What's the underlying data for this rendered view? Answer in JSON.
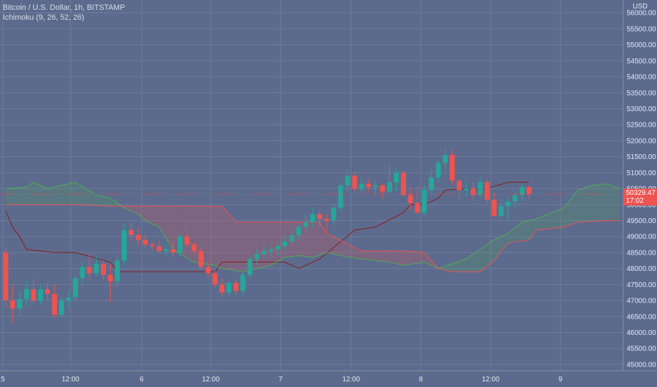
{
  "legend": {
    "title": "Bitcoin / U.S. Dollar, 1h, BITSTAMP",
    "indicator": "Ichimoku (9, 26, 52, 26)"
  },
  "last_price": {
    "value": "50329.47",
    "countdown": "17:02"
  },
  "colors": {
    "background": "#5c6b8d",
    "grid": "#6e7c9c",
    "up": "#26a69a",
    "down": "#ef5350",
    "base_line": "#8b1a1a",
    "span_a": "#4caf50",
    "span_b": "#ef5350",
    "cloud_bull": "rgba(76,175,80,0.18)",
    "cloud_bear": "rgba(239,83,80,0.22)",
    "axis_text": "#e6e9f0"
  },
  "chart_data": {
    "type": "candlestick",
    "title": "Bitcoin / U.S. Dollar, 1h, BITSTAMP",
    "ylabel": "USD",
    "ylim": [
      44800,
      56400
    ],
    "y_ticks": [
      45000,
      45500,
      46000,
      46500,
      47000,
      47500,
      48000,
      48500,
      49000,
      49500,
      50000,
      50500,
      51000,
      51500,
      52000,
      52500,
      53000,
      53500,
      54000,
      54500,
      55000,
      55500,
      56000
    ],
    "x_ticks": [
      "5",
      "12:00",
      "6",
      "12:00",
      "7",
      "12:00",
      "8",
      "12:00",
      "9"
    ],
    "grid": true,
    "candle_width_hours": 1,
    "candles": [
      [
        48500,
        48650,
        46800,
        47000
      ],
      [
        47000,
        47450,
        46300,
        46750
      ],
      [
        46750,
        47300,
        46500,
        47050
      ],
      [
        47050,
        47600,
        46800,
        47350
      ],
      [
        47350,
        47700,
        46900,
        47000
      ],
      [
        47000,
        47500,
        46850,
        47350
      ],
      [
        47350,
        47550,
        47000,
        47200
      ],
      [
        47200,
        47500,
        46450,
        46550
      ],
      [
        46550,
        47150,
        46500,
        47000
      ],
      [
        47000,
        47300,
        46800,
        47100
      ],
      [
        47100,
        47800,
        47000,
        47700
      ],
      [
        47700,
        48200,
        47500,
        48050
      ],
      [
        48050,
        48500,
        47650,
        47850
      ],
      [
        47850,
        48400,
        47750,
        48150
      ],
      [
        48150,
        48250,
        47650,
        47800
      ],
      [
        47800,
        48150,
        46950,
        47600
      ],
      [
        47600,
        48400,
        47450,
        48250
      ],
      [
        48250,
        49400,
        48100,
        49200
      ],
      [
        49200,
        49450,
        48850,
        49050
      ],
      [
        49050,
        49300,
        48700,
        48900
      ],
      [
        48900,
        49050,
        48650,
        48750
      ],
      [
        48750,
        48850,
        48550,
        48700
      ],
      [
        48700,
        48900,
        48500,
        48550
      ],
      [
        48550,
        48750,
        48400,
        48600
      ],
      [
        48600,
        48850,
        48350,
        48500
      ],
      [
        48500,
        49100,
        48400,
        49000
      ],
      [
        49000,
        49200,
        48650,
        48750
      ],
      [
        48750,
        48850,
        48450,
        48550
      ],
      [
        48550,
        48650,
        47950,
        48050
      ],
      [
        48050,
        48200,
        47700,
        47850
      ],
      [
        47850,
        47950,
        47400,
        47500
      ],
      [
        47500,
        47700,
        47100,
        47250
      ],
      [
        47250,
        47600,
        47150,
        47550
      ],
      [
        47550,
        47650,
        47200,
        47300
      ],
      [
        47300,
        47900,
        47150,
        47800
      ],
      [
        47800,
        48400,
        47700,
        48300
      ],
      [
        48300,
        48600,
        48100,
        48450
      ],
      [
        48450,
        48750,
        48300,
        48550
      ],
      [
        48550,
        48700,
        48350,
        48600
      ],
      [
        48600,
        48850,
        48400,
        48700
      ],
      [
        48700,
        49050,
        48550,
        48850
      ],
      [
        48850,
        49200,
        48750,
        49050
      ],
      [
        49050,
        49400,
        48900,
        49300
      ],
      [
        49300,
        49700,
        49100,
        49450
      ],
      [
        49450,
        49900,
        49250,
        49700
      ],
      [
        49700,
        49800,
        49300,
        49550
      ],
      [
        49550,
        49700,
        49100,
        49500
      ],
      [
        49500,
        50000,
        49350,
        49900
      ],
      [
        49900,
        50700,
        49800,
        50600
      ],
      [
        50600,
        51100,
        50400,
        50900
      ],
      [
        50900,
        51000,
        50400,
        50500
      ],
      [
        50500,
        50800,
        50350,
        50650
      ],
      [
        50650,
        50800,
        50400,
        50550
      ],
      [
        50550,
        50700,
        50250,
        50600
      ],
      [
        50600,
        50650,
        50200,
        50400
      ],
      [
        50400,
        51250,
        50300,
        50700
      ],
      [
        50700,
        51150,
        50400,
        51000
      ],
      [
        51000,
        51050,
        50250,
        50300
      ],
      [
        50300,
        50550,
        49850,
        50050
      ],
      [
        50050,
        50550,
        49700,
        49750
      ],
      [
        49750,
        50600,
        49650,
        50450
      ],
      [
        50450,
        51100,
        50300,
        50850
      ],
      [
        50850,
        51400,
        50700,
        51300
      ],
      [
        51300,
        51750,
        51050,
        51550
      ],
      [
        51550,
        51700,
        50600,
        50750
      ],
      [
        50750,
        50800,
        50150,
        50450
      ],
      [
        50450,
        50700,
        50250,
        50500
      ],
      [
        50500,
        50700,
        50100,
        50300
      ],
      [
        50300,
        50850,
        50200,
        50700
      ],
      [
        50700,
        50800,
        50050,
        50150
      ],
      [
        50150,
        50350,
        49600,
        49650
      ],
      [
        49650,
        50200,
        49550,
        49950
      ],
      [
        49950,
        50250,
        49450,
        50100
      ],
      [
        50100,
        50400,
        49900,
        50300
      ],
      [
        50300,
        50650,
        50100,
        50550
      ],
      [
        50550,
        50600,
        50200,
        50329.47
      ]
    ],
    "series": [
      {
        "name": "base line",
        "x": [
          0,
          1,
          2,
          3,
          5,
          7,
          10,
          15,
          16,
          18,
          30,
          31,
          40,
          42,
          45,
          50,
          53,
          57,
          58,
          60,
          62,
          63,
          66,
          68,
          72,
          75
        ],
        "y": [
          49800,
          49300,
          49000,
          48600,
          48550,
          48500,
          48500,
          48200,
          47900,
          47900,
          47900,
          48200,
          48200,
          48000,
          48300,
          49200,
          49300,
          49750,
          50000,
          50000,
          50200,
          50450,
          50500,
          50450,
          50700,
          50700
        ]
      },
      {
        "name": "span a",
        "x": [
          0,
          3,
          4,
          6,
          8,
          10,
          13,
          15,
          17,
          19,
          20,
          22,
          24,
          27,
          30,
          31,
          34,
          36,
          38,
          40,
          42,
          44,
          46,
          48,
          51,
          55,
          57,
          60,
          62,
          66,
          70,
          72,
          74,
          76,
          80,
          82,
          84,
          86,
          88
        ],
        "y": [
          50500,
          50550,
          50700,
          50500,
          50600,
          50700,
          50300,
          50200,
          49900,
          49700,
          49500,
          49300,
          48600,
          48200,
          48100,
          48000,
          47900,
          48000,
          48100,
          48350,
          48400,
          48350,
          48500,
          48400,
          48300,
          48200,
          48100,
          48200,
          48000,
          48300,
          48900,
          49100,
          49450,
          49550,
          49900,
          50450,
          50600,
          50650,
          50500
        ]
      },
      {
        "name": "span b",
        "x": [
          0,
          10,
          15,
          16,
          19,
          21,
          26,
          27,
          31,
          33,
          45,
          46,
          51,
          52,
          57,
          60,
          62,
          64,
          68,
          70,
          72,
          75,
          76,
          80,
          82,
          86,
          88
        ],
        "y": [
          50000,
          50000,
          49950,
          49950,
          49950,
          49950,
          49950,
          49950,
          49950,
          49450,
          49450,
          49100,
          48550,
          48550,
          48550,
          48500,
          48000,
          47900,
          47900,
          48250,
          48800,
          48900,
          49200,
          49300,
          49450,
          49500,
          49500
        ]
      }
    ]
  }
}
